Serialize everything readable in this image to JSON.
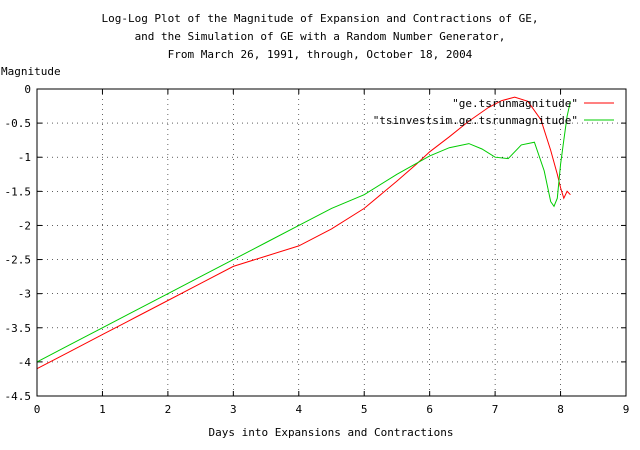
{
  "chart_data": {
    "type": "line",
    "title_lines": [
      "Log-Log Plot of the Magnitude of Expansion and Contractions of GE,",
      "and the Simulation of GE with a Random Number Generator,",
      "From March 26, 1991, through, October 18, 2004"
    ],
    "xlabel": "Days into Expansions and Contractions",
    "ylabel": "Magnitude",
    "xlim": [
      0,
      9
    ],
    "ylim": [
      -4.5,
      0
    ],
    "x_ticks": [
      0,
      1,
      2,
      3,
      4,
      5,
      6,
      7,
      8,
      9
    ],
    "y_ticks": [
      0,
      -0.5,
      -1,
      -1.5,
      -2,
      -2.5,
      -3,
      -3.5,
      -4,
      -4.5
    ],
    "grid": true,
    "legend_position": "top-right",
    "series": [
      {
        "name": "\"ge.tsrunmagnitude\"",
        "color": "#ff0000",
        "x": [
          0.0,
          0.5,
          1.0,
          1.5,
          2.0,
          2.5,
          3.0,
          3.5,
          4.0,
          4.5,
          5.0,
          5.5,
          5.8,
          6.0,
          6.3,
          6.6,
          6.9,
          7.1,
          7.3,
          7.5,
          7.7,
          7.85,
          7.95,
          8.0,
          8.05,
          8.1,
          8.15
        ],
        "y": [
          -4.1,
          -3.85,
          -3.6,
          -3.35,
          -3.1,
          -2.85,
          -2.6,
          -2.45,
          -2.3,
          -2.05,
          -1.75,
          -1.35,
          -1.1,
          -0.92,
          -0.7,
          -0.47,
          -0.27,
          -0.17,
          -0.12,
          -0.18,
          -0.45,
          -0.9,
          -1.25,
          -1.45,
          -1.6,
          -1.5,
          -1.55
        ]
      },
      {
        "name": "\"tsinvestsim.ge.tsrunmagnitude\"",
        "color": "#00cc00",
        "x": [
          0.0,
          0.5,
          1.0,
          1.5,
          2.0,
          2.5,
          3.0,
          3.5,
          4.0,
          4.5,
          5.0,
          5.5,
          6.0,
          6.3,
          6.6,
          6.8,
          7.0,
          7.2,
          7.4,
          7.6,
          7.75,
          7.85,
          7.9,
          7.95,
          8.0,
          8.05,
          8.1,
          8.15
        ],
        "y": [
          -4.0,
          -3.75,
          -3.5,
          -3.25,
          -3.0,
          -2.75,
          -2.5,
          -2.25,
          -2.0,
          -1.75,
          -1.55,
          -1.25,
          -0.98,
          -0.86,
          -0.8,
          -0.88,
          -1.0,
          -1.02,
          -0.82,
          -0.78,
          -1.2,
          -1.65,
          -1.72,
          -1.6,
          -1.1,
          -0.75,
          -0.4,
          -0.18
        ]
      }
    ]
  }
}
